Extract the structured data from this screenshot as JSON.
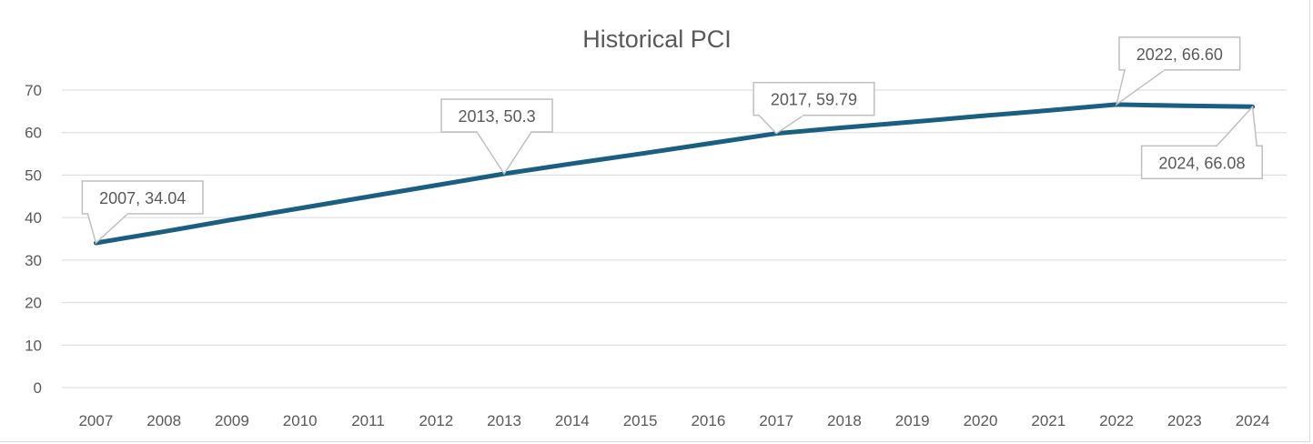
{
  "chart_data": {
    "type": "line",
    "title": "Historical PCI",
    "xlabel": "",
    "ylabel": "",
    "categories": [
      "2007",
      "2008",
      "2009",
      "2010",
      "2011",
      "2012",
      "2013",
      "2014",
      "2015",
      "2016",
      "2017",
      "2018",
      "2019",
      "2020",
      "2021",
      "2022",
      "2023",
      "2024"
    ],
    "series": [
      {
        "values": [
          34.04,
          36.7,
          39.5,
          42.2,
          44.9,
          47.6,
          50.3,
          52.7,
          55.0,
          57.4,
          59.79,
          61.2,
          62.5,
          63.9,
          65.2,
          66.6,
          66.3,
          66.08
        ],
        "color": "#1a5f82"
      }
    ],
    "ylim": [
      0,
      70
    ],
    "yticks": [
      "0",
      "10",
      "20",
      "30",
      "40",
      "50",
      "60",
      "70"
    ],
    "grid": true,
    "legend": "none",
    "data_labels": [
      {
        "category": "2007",
        "text": "2007, 34.04"
      },
      {
        "category": "2013",
        "text": "2013, 50.3"
      },
      {
        "category": "2017",
        "text": "2017, 59.79"
      },
      {
        "category": "2022",
        "text": "2022, 66.60"
      },
      {
        "category": "2024",
        "text": "2024, 66.08"
      }
    ]
  }
}
